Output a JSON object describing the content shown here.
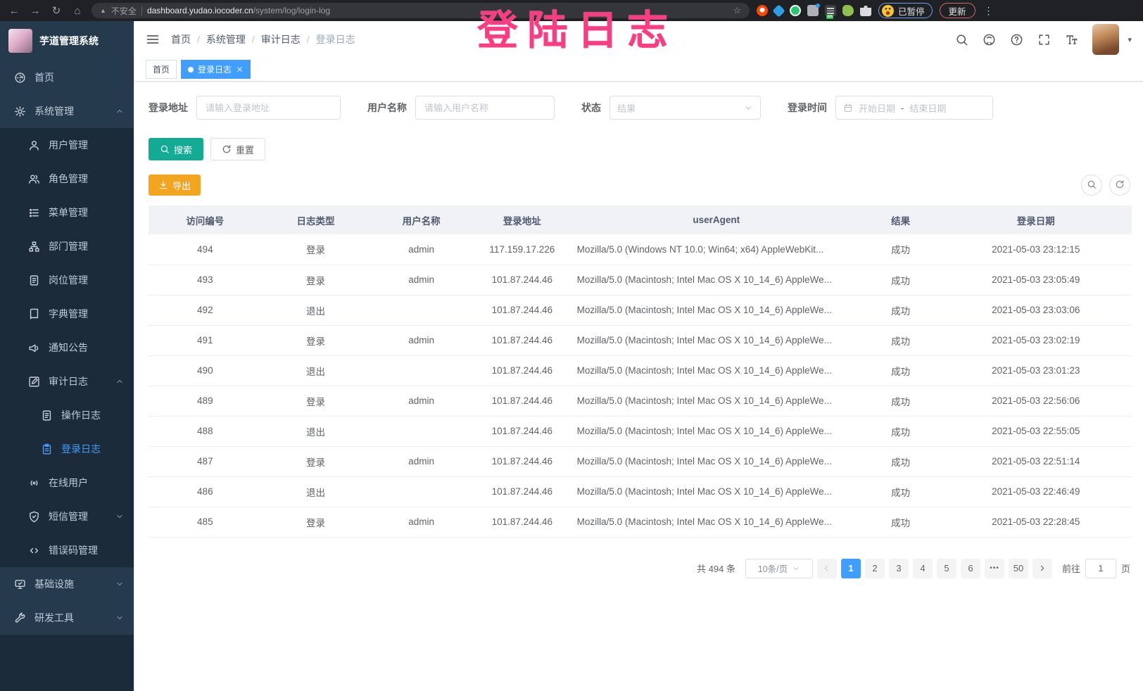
{
  "browser": {
    "security_label": "不安全",
    "url_domain": "dashboard.yudao.iocoder.cn",
    "url_path": "/system/log/login-log",
    "profile_badge": "已暂停",
    "update_label": "更新"
  },
  "annotation": {
    "text": "登陆日志",
    "color": "#fa3c82"
  },
  "sidebar": {
    "title": "芋道管理系统",
    "items": [
      {
        "name": "home",
        "label": "首页",
        "icon": "dashboard-icon",
        "level": 0
      },
      {
        "name": "system-mgmt",
        "label": "系统管理",
        "icon": "gear-icon",
        "level": 0,
        "arrow": "up"
      },
      {
        "name": "user-mgmt",
        "label": "用户管理",
        "icon": "user-icon",
        "level": 1
      },
      {
        "name": "role-mgmt",
        "label": "角色管理",
        "icon": "users-icon",
        "level": 1
      },
      {
        "name": "menu-mgmt",
        "label": "菜单管理",
        "icon": "menu-list-icon",
        "level": 1
      },
      {
        "name": "dept-mgmt",
        "label": "部门管理",
        "icon": "tree-icon",
        "level": 1
      },
      {
        "name": "post-mgmt",
        "label": "岗位管理",
        "icon": "badge-icon",
        "level": 1
      },
      {
        "name": "dict-mgmt",
        "label": "字典管理",
        "icon": "book-icon",
        "level": 1
      },
      {
        "name": "notice",
        "label": "通知公告",
        "icon": "megaphone-icon",
        "level": 1
      },
      {
        "name": "audit-log",
        "label": "审计日志",
        "icon": "edit-icon",
        "level": 1,
        "arrow": "up"
      },
      {
        "name": "operate-log",
        "label": "操作日志",
        "icon": "doc-icon",
        "level": 2
      },
      {
        "name": "login-log",
        "label": "登录日志",
        "icon": "login-log-icon",
        "level": 2,
        "active": true
      },
      {
        "name": "online-users",
        "label": "在线用户",
        "icon": "online-icon",
        "level": 1
      },
      {
        "name": "sms-mgmt",
        "label": "短信管理",
        "icon": "shield-icon",
        "level": 1,
        "arrow": "down"
      },
      {
        "name": "errcode-mgmt",
        "label": "错误码管理",
        "icon": "code-icon",
        "level": 1
      },
      {
        "name": "infra",
        "label": "基础设施",
        "icon": "monitor-icon",
        "level": 0,
        "arrow": "down"
      },
      {
        "name": "dev-tools",
        "label": "研发工具",
        "icon": "tool-icon",
        "level": 0,
        "arrow": "down"
      }
    ]
  },
  "navbar": {
    "breadcrumb": [
      "首页",
      "系统管理",
      "审计日志",
      "登录日志"
    ]
  },
  "tabs": [
    {
      "label": "首页",
      "active": false
    },
    {
      "label": "登录日志",
      "active": true,
      "closable": true
    }
  ],
  "filters": {
    "address": {
      "label": "登录地址",
      "placeholder": "请输入登录地址"
    },
    "username": {
      "label": "用户名称",
      "placeholder": "请输入用户名称"
    },
    "status": {
      "label": "状态",
      "placeholder": "结果"
    },
    "time": {
      "label": "登录时间",
      "start_placeholder": "开始日期",
      "separator": "-",
      "end_placeholder": "结束日期"
    },
    "search_label": "搜索",
    "reset_label": "重置"
  },
  "toolbar": {
    "export_label": "导出"
  },
  "table": {
    "headers": [
      "访问编号",
      "日志类型",
      "用户名称",
      "登录地址",
      "userAgent",
      "结果",
      "登录日期"
    ],
    "rows": [
      [
        "494",
        "登录",
        "admin",
        "117.159.17.226",
        "Mozilla/5.0 (Windows NT 10.0; Win64; x64) AppleWebKit...",
        "成功",
        "2021-05-03 23:12:15"
      ],
      [
        "493",
        "登录",
        "admin",
        "101.87.244.46",
        "Mozilla/5.0 (Macintosh; Intel Mac OS X 10_14_6) AppleWe...",
        "成功",
        "2021-05-03 23:05:49"
      ],
      [
        "492",
        "退出",
        "",
        "101.87.244.46",
        "Mozilla/5.0 (Macintosh; Intel Mac OS X 10_14_6) AppleWe...",
        "成功",
        "2021-05-03 23:03:06"
      ],
      [
        "491",
        "登录",
        "admin",
        "101.87.244.46",
        "Mozilla/5.0 (Macintosh; Intel Mac OS X 10_14_6) AppleWe...",
        "成功",
        "2021-05-03 23:02:19"
      ],
      [
        "490",
        "退出",
        "",
        "101.87.244.46",
        "Mozilla/5.0 (Macintosh; Intel Mac OS X 10_14_6) AppleWe...",
        "成功",
        "2021-05-03 23:01:23"
      ],
      [
        "489",
        "登录",
        "admin",
        "101.87.244.46",
        "Mozilla/5.0 (Macintosh; Intel Mac OS X 10_14_6) AppleWe...",
        "成功",
        "2021-05-03 22:56:06"
      ],
      [
        "488",
        "退出",
        "",
        "101.87.244.46",
        "Mozilla/5.0 (Macintosh; Intel Mac OS X 10_14_6) AppleWe...",
        "成功",
        "2021-05-03 22:55:05"
      ],
      [
        "487",
        "登录",
        "admin",
        "101.87.244.46",
        "Mozilla/5.0 (Macintosh; Intel Mac OS X 10_14_6) AppleWe...",
        "成功",
        "2021-05-03 22:51:14"
      ],
      [
        "486",
        "退出",
        "",
        "101.87.244.46",
        "Mozilla/5.0 (Macintosh; Intel Mac OS X 10_14_6) AppleWe...",
        "成功",
        "2021-05-03 22:46:49"
      ],
      [
        "485",
        "登录",
        "admin",
        "101.87.244.46",
        "Mozilla/5.0 (Macintosh; Intel Mac OS X 10_14_6) AppleWe...",
        "成功",
        "2021-05-03 22:28:45"
      ]
    ]
  },
  "pagination": {
    "total_text": "共 494 条",
    "page_size": "10条/页",
    "pages": [
      "1",
      "2",
      "3",
      "4",
      "5",
      "6",
      "•••",
      "50"
    ],
    "active_page": "1",
    "jump_prefix": "前往",
    "jump_value": "1",
    "jump_suffix": "页"
  },
  "colors": {
    "accent": "#409eff",
    "search_button": "#13ab93",
    "export_button": "#f3a51f",
    "annotation": "#fa3c82",
    "sidebar_bg": "#1c2b3a",
    "sidebar_item_bg": "#263a4d",
    "active_menu_text": "#409eff"
  }
}
